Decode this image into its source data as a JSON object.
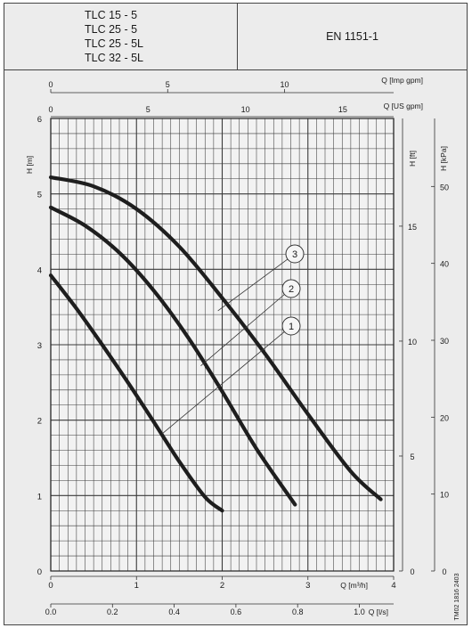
{
  "header": {
    "models": [
      "TLC 15 - 5",
      "TLC 25 - 5",
      "TLC 25 - 5L",
      "TLC 32 - 5L"
    ],
    "standard": "EN 1151-1"
  },
  "chart_data": {
    "type": "line",
    "xlabel": "Q [m³/h]",
    "ylabel": "H [m]",
    "xlim": [
      0,
      4
    ],
    "ylim": [
      0,
      6
    ],
    "grid": true,
    "x_ticks": [
      "0",
      "1",
      "2",
      "3",
      "4"
    ],
    "y_ticks": [
      "0",
      "1",
      "2",
      "3",
      "4",
      "5",
      "6"
    ],
    "secondary_axes": {
      "top_imp_gpm": {
        "label": "Q [Imp gpm]",
        "ticks": [
          "0",
          "5",
          "10"
        ]
      },
      "top_us_gpm": {
        "label": "Q [US gpm]",
        "ticks": [
          "0",
          "5",
          "10",
          "15"
        ]
      },
      "right_ft": {
        "label": "H [ft]",
        "ticks": [
          "0",
          "5",
          "10",
          "15"
        ]
      },
      "right_kpa": {
        "label": "H [kPa]",
        "ticks": [
          "0",
          "10",
          "20",
          "30",
          "40",
          "50"
        ]
      },
      "bottom_ls": {
        "label": "Q [l/s]",
        "ticks": [
          "0.0",
          "0.2",
          "0.4",
          "0.6",
          "0.8",
          "1.0"
        ]
      }
    },
    "series": [
      {
        "name": "1",
        "x": [
          0,
          0.3,
          0.6,
          0.9,
          1.2,
          1.5,
          1.8,
          2.0
        ],
        "y": [
          3.92,
          3.48,
          3.0,
          2.5,
          1.98,
          1.45,
          0.98,
          0.8
        ]
      },
      {
        "name": "2",
        "x": [
          0,
          0.4,
          0.8,
          1.2,
          1.6,
          2.0,
          2.4,
          2.85
        ],
        "y": [
          4.82,
          4.58,
          4.22,
          3.72,
          3.1,
          2.38,
          1.62,
          0.88
        ]
      },
      {
        "name": "3",
        "x": [
          0,
          0.5,
          1.0,
          1.5,
          2.0,
          2.5,
          3.0,
          3.5,
          3.85
        ],
        "y": [
          5.22,
          5.1,
          4.8,
          4.3,
          3.62,
          2.88,
          2.08,
          1.32,
          0.95
        ]
      }
    ],
    "curve_labels": [
      {
        "text": "3",
        "lead_to": [
          1.95,
          3.45
        ]
      },
      {
        "text": "2",
        "lead_to": [
          1.75,
          2.72
        ]
      },
      {
        "text": "1",
        "lead_to": [
          1.3,
          1.82
        ]
      }
    ],
    "footer_code": "TM02 1816 2403",
    "colors": {
      "curve": "#1e1e1e",
      "grid": "#3a3a3a",
      "background": "#ececec"
    }
  }
}
